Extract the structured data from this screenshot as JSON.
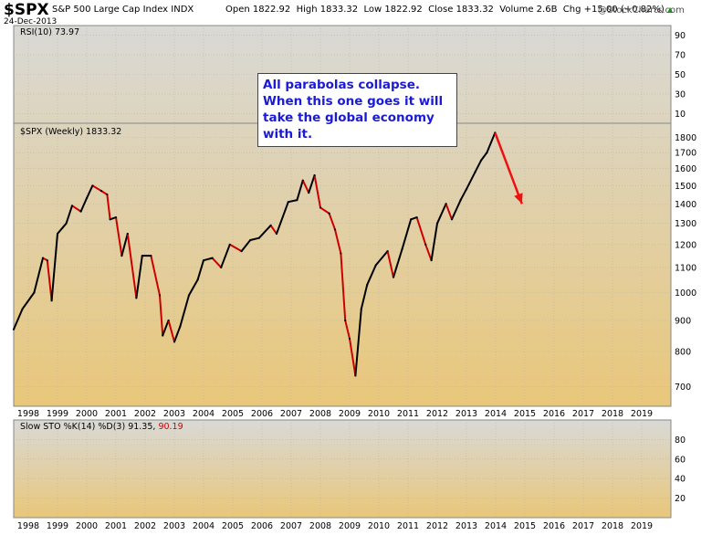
{
  "header": {
    "symbol": "$SPX",
    "name": "S&P 500 Large Cap Index",
    "exchange": "INDX",
    "date": "24-Dec-2013",
    "open_label": "Open",
    "open": "1822.92",
    "high_label": "High",
    "high": "1833.32",
    "low_label": "Low",
    "low": "1822.92",
    "close_label": "Close",
    "close": "1833.32",
    "volume_label": "Volume",
    "volume": "2.6B",
    "chg_label": "Chg",
    "chg": "+15.00 (+0.82%)",
    "brand": "@StockCharts.com"
  },
  "colors": {
    "background_top": "#d9d9d6",
    "background_bottom": "#e9c77a",
    "up": "#000000",
    "down": "#cc0000",
    "annotation_text": "#1b1bd6",
    "arrow": "#ee1111"
  },
  "annotation": "All parabolas collapse. When this one goes it will take the global economy with it.",
  "chart_data": [
    {
      "type": "line",
      "panel": "RSI",
      "title": "RSI(10) 73.97",
      "yticks": [
        10,
        30,
        50,
        70,
        90
      ],
      "ylim": [
        0,
        100
      ],
      "series": [
        {
          "values": []
        }
      ]
    },
    {
      "type": "line",
      "panel": "price",
      "title": "$SPX (Weekly) 1833.32",
      "xlabel": "",
      "ylabel": "",
      "x_ticks": [
        "1998",
        "1999",
        "2000",
        "2001",
        "2002",
        "2003",
        "2004",
        "2005",
        "2006",
        "2007",
        "2008",
        "2009",
        "2010",
        "2011",
        "2012",
        "2013",
        "2014",
        "2015",
        "2016",
        "2017",
        "2018",
        "2019"
      ],
      "yticks": [
        700,
        800,
        900,
        1000,
        1100,
        1200,
        1300,
        1400,
        1500,
        1600,
        1700,
        1800
      ],
      "ylim": [
        650,
        1900
      ],
      "scale": "log",
      "x": [
        1997.5,
        1997.8,
        1998.2,
        1998.5,
        1998.65,
        1998.8,
        1999.0,
        1999.3,
        1999.5,
        1999.8,
        2000.0,
        2000.2,
        2000.5,
        2000.7,
        2000.8,
        2001.0,
        2001.2,
        2001.4,
        2001.7,
        2001.9,
        2002.2,
        2002.5,
        2002.6,
        2002.8,
        2003.0,
        2003.2,
        2003.5,
        2003.8,
        2004.0,
        2004.3,
        2004.6,
        2004.9,
        2005.3,
        2005.6,
        2005.9,
        2006.3,
        2006.5,
        2006.9,
        2007.2,
        2007.4,
        2007.6,
        2007.8,
        2008.0,
        2008.3,
        2008.5,
        2008.7,
        2008.85,
        2009.0,
        2009.2,
        2009.4,
        2009.6,
        2009.9,
        2010.3,
        2010.5,
        2010.8,
        2011.1,
        2011.3,
        2011.6,
        2011.8,
        2012.0,
        2012.3,
        2012.5,
        2012.8,
        2013.0,
        2013.3,
        2013.5,
        2013.7,
        2013.98
      ],
      "values": [
        870,
        940,
        1000,
        1140,
        1130,
        970,
        1250,
        1300,
        1390,
        1360,
        1430,
        1500,
        1470,
        1450,
        1320,
        1330,
        1150,
        1250,
        980,
        1150,
        1150,
        990,
        850,
        900,
        830,
        880,
        990,
        1050,
        1130,
        1140,
        1100,
        1200,
        1170,
        1220,
        1230,
        1290,
        1250,
        1410,
        1420,
        1530,
        1460,
        1560,
        1380,
        1350,
        1270,
        1160,
        900,
        840,
        730,
        940,
        1030,
        1110,
        1170,
        1060,
        1180,
        1320,
        1330,
        1200,
        1130,
        1300,
        1400,
        1320,
        1420,
        1480,
        1580,
        1650,
        1700,
        1833
      ],
      "projection": {
        "from": [
          2013.98,
          1833
        ],
        "to": [
          2014.9,
          1400
        ]
      }
    },
    {
      "type": "line",
      "panel": "STO",
      "title": "Slow STO %K(14) %D(3) 91.35,",
      "d_value": "90.19",
      "yticks": [
        20,
        40,
        60,
        80
      ],
      "ylim": [
        0,
        100
      ],
      "series": [
        {
          "values": []
        },
        {
          "values": []
        }
      ]
    }
  ]
}
